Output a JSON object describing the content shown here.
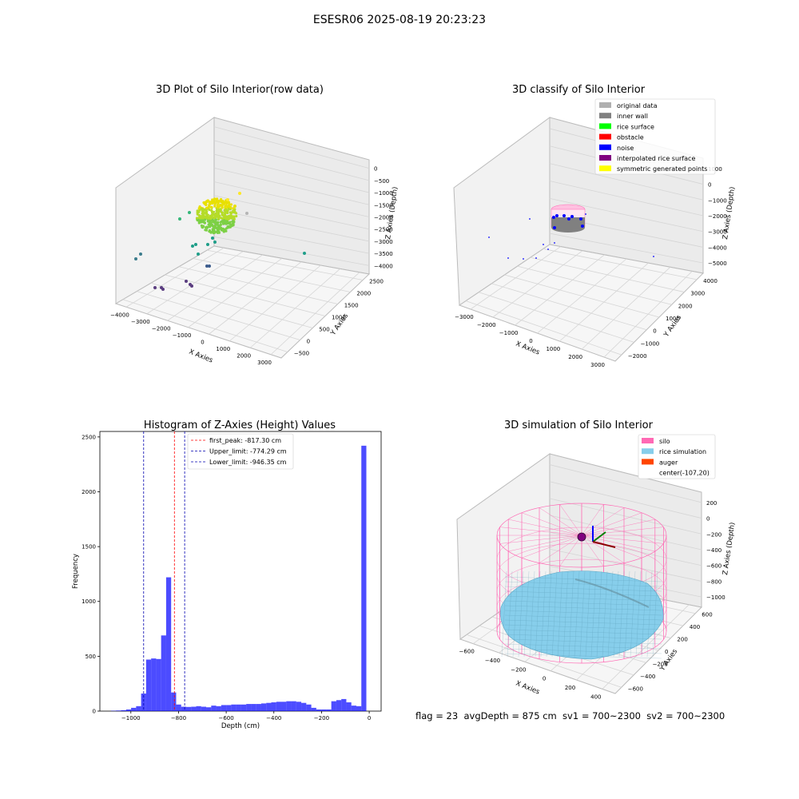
{
  "suptitle": "ESESR06 2025-08-19 20:23:23",
  "footer": "flag = 23  avgDepth = 875 cm  sv1 = 700~2300  sv2 = 700~2300",
  "chart_data": [
    {
      "type": "scatter",
      "title": "3D Plot of Silo Interior(row data)",
      "xlabel": "X Axies",
      "ylabel": "Y Axies",
      "zlabel": "Z Axies (Depth)",
      "x_ticks": [
        "−4000",
        "−3000",
        "−2000",
        "−1000",
        "0",
        "1000",
        "2000",
        "3000"
      ],
      "y_ticks": [
        "−500",
        "0",
        "500",
        "1000",
        "1500",
        "2000",
        "2500"
      ],
      "z_ticks": [
        "0",
        "−500",
        "−1000",
        "−1500",
        "−2000",
        "−2500",
        "−3000",
        "−3500",
        "−4000"
      ]
    },
    {
      "type": "scatter",
      "title": "3D classify of Silo Interior",
      "xlabel": "X Axies",
      "ylabel": "Y Axies",
      "zlabel": "Z Axies (Depth)",
      "x_ticks": [
        "−3000",
        "−2000",
        "−1000",
        "0",
        "1000",
        "2000",
        "3000"
      ],
      "y_ticks": [
        "−2000",
        "−1000",
        "0",
        "1000",
        "2000",
        "3000",
        "4000"
      ],
      "z_ticks": [
        "1000",
        "0",
        "−1000",
        "−2000",
        "−3000",
        "−4000",
        "−5000"
      ],
      "legend": [
        {
          "label": "original data",
          "color": "#b0b0b0"
        },
        {
          "label": "inner wall",
          "color": "#808080"
        },
        {
          "label": "rice surface",
          "color": "#00ff00"
        },
        {
          "label": "obstacle",
          "color": "#ff0000"
        },
        {
          "label": "noise",
          "color": "#0000ff"
        },
        {
          "label": "interpolated rice surface",
          "color": "#800080"
        },
        {
          "label": "symmetric generated points",
          "color": "#ffff00"
        }
      ]
    },
    {
      "type": "bar",
      "title": "Histogram of Z-Axies (Height) Values",
      "xlabel": "Depth (cm)",
      "ylabel": "Frequency",
      "xlim": [
        -1130,
        50
      ],
      "ylim": [
        0,
        2550
      ],
      "x_ticks": [
        -1000,
        -800,
        -600,
        -400,
        -200,
        0
      ],
      "y_ticks": [
        0,
        500,
        1000,
        1500,
        2000,
        2500
      ],
      "bin_width": 21,
      "bar_color": "#0000ff",
      "bins_start": [
        -1083,
        -1062,
        -1041,
        -1020,
        -999,
        -978,
        -957,
        -936,
        -915,
        -894,
        -873,
        -852,
        -831,
        -810,
        -789,
        -768,
        -747,
        -726,
        -705,
        -684,
        -663,
        -642,
        -621,
        -600,
        -579,
        -558,
        -537,
        -516,
        -495,
        -474,
        -453,
        -432,
        -411,
        -390,
        -369,
        -348,
        -327,
        -306,
        -285,
        -264,
        -243,
        -222,
        -201,
        -180,
        -159,
        -138,
        -117,
        -96,
        -75,
        -54,
        -33,
        -12
      ],
      "values": [
        3,
        5,
        8,
        15,
        30,
        45,
        160,
        470,
        480,
        475,
        690,
        1220,
        170,
        60,
        40,
        38,
        40,
        45,
        40,
        35,
        50,
        45,
        55,
        55,
        60,
        60,
        60,
        65,
        65,
        65,
        70,
        75,
        80,
        85,
        85,
        90,
        90,
        85,
        75,
        60,
        30,
        15,
        15,
        15,
        90,
        100,
        110,
        80,
        50,
        45,
        2420,
        0
      ],
      "reference_lines": [
        {
          "label": "first_peak: -817.30 cm",
          "value": -817.3,
          "color": "#ff0000"
        },
        {
          "label": "Upper_limit: -774.29 cm",
          "value": -774.29,
          "color": "#0000b0"
        },
        {
          "label": "Lower_limit: -946.35 cm",
          "value": -946.35,
          "color": "#0000b0"
        }
      ]
    },
    {
      "type": "surface",
      "title": "3D simulation of Silo Interior",
      "xlabel": "X Axies",
      "ylabel": "Y Axies",
      "zlabel": "Z Axies (Depth)",
      "x_ticks": [
        "−600",
        "−400",
        "−200",
        "0",
        "200",
        "400"
      ],
      "y_ticks": [
        "−600",
        "−400",
        "−200",
        "0",
        "200",
        "400",
        "600"
      ],
      "z_ticks": [
        "200",
        "0",
        "−200",
        "−400",
        "−600",
        "−800",
        "−1000"
      ],
      "legend": [
        {
          "label": "silo",
          "color": "#ff69b4"
        },
        {
          "label": "rice simulation",
          "color": "#87ceeb"
        },
        {
          "label": "auger",
          "color": "#ff4500"
        },
        {
          "label": "center(-107,20)",
          "color": ""
        }
      ]
    }
  ]
}
